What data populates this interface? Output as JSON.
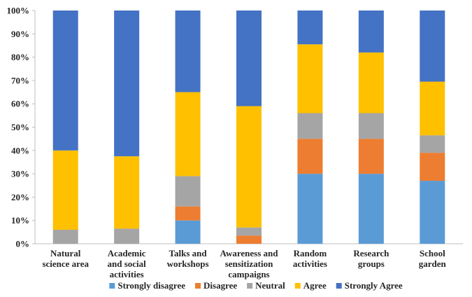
{
  "chart_data": {
    "type": "bar",
    "stacked": true,
    "categories": [
      [
        "Natural",
        "science area"
      ],
      [
        "Academic",
        "and social",
        "activities"
      ],
      [
        "Talks and",
        "workshops"
      ],
      [
        "Awareness and",
        "sensitization",
        "campaigns"
      ],
      [
        "Random",
        "activities"
      ],
      [
        "Research",
        "groups"
      ],
      [
        "School",
        "garden"
      ]
    ],
    "series": [
      {
        "name": "Strongly disagree",
        "color": "#5b9bd5",
        "values": [
          0,
          0,
          10,
          0,
          30,
          30,
          27
        ]
      },
      {
        "name": "Disagree",
        "color": "#ed7d31",
        "values": [
          0,
          0,
          6,
          3.5,
          15,
          15,
          12
        ]
      },
      {
        "name": "Neutral",
        "color": "#a5a5a5",
        "values": [
          6,
          6.5,
          13,
          3.5,
          11,
          11,
          7.5
        ]
      },
      {
        "name": "Agree",
        "color": "#ffc000",
        "values": [
          34,
          31,
          36,
          52,
          29.5,
          26,
          23
        ]
      },
      {
        "name": "Strongly Agree",
        "color": "#4472c4",
        "values": [
          60,
          62.5,
          35,
          41,
          14.5,
          18,
          30.5
        ]
      }
    ],
    "y_ticks": [
      "0%",
      "10%",
      "20%",
      "30%",
      "40%",
      "50%",
      "60%",
      "70%",
      "80%",
      "90%",
      "100%"
    ],
    "ylim": [
      0,
      100
    ],
    "grid": false,
    "legend_position": "bottom"
  }
}
